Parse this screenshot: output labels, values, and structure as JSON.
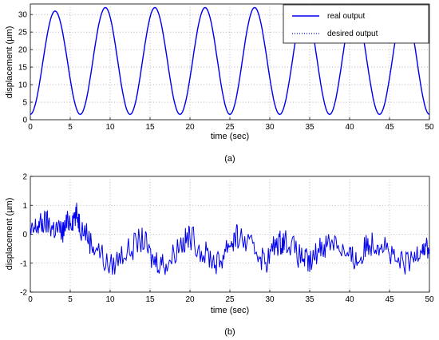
{
  "chart_data": [
    {
      "type": "line",
      "xlabel": "time (sec)",
      "ylabel": "displacement (µm)",
      "caption": "(a)",
      "xlim": [
        0,
        50
      ],
      "ylim": [
        0,
        33
      ],
      "xticks": [
        0,
        5,
        10,
        15,
        20,
        25,
        30,
        35,
        40,
        45,
        50
      ],
      "yticks": [
        0,
        5,
        10,
        15,
        20,
        25,
        30
      ],
      "grid": true,
      "legend": {
        "placement": "top-right",
        "entries": [
          "real output",
          "desired output"
        ]
      },
      "series": [
        {
          "name": "real output",
          "color": "#0000ee",
          "style": "solid",
          "x": [
            0,
            3.1,
            6.25,
            9.4,
            12.5,
            15.6,
            18.75,
            21.9,
            25.0,
            28.1,
            31.25,
            34.4,
            37.5,
            40.6,
            43.75,
            46.9,
            50
          ],
          "y": [
            1.5,
            31,
            1.5,
            32,
            1.5,
            32,
            1.5,
            32,
            1.5,
            32,
            1.5,
            32,
            1.5,
            32,
            1.5,
            32,
            1.5
          ]
        },
        {
          "name": "desired output",
          "color": "#0000ee",
          "style": "dotted",
          "x": [
            0,
            3.1,
            6.25,
            9.4,
            12.5,
            15.6,
            18.75,
            21.9,
            25.0,
            28.1,
            31.25,
            34.4,
            37.5,
            40.6,
            43.75,
            46.9,
            50
          ],
          "y": [
            1.5,
            31,
            1.5,
            32,
            1.5,
            32,
            1.5,
            32,
            1.5,
            32,
            1.5,
            32,
            1.5,
            32,
            1.5,
            32,
            1.5
          ]
        }
      ]
    },
    {
      "type": "line",
      "xlabel": "time (sec)",
      "ylabel": "displacement (µm)",
      "caption": "(b)",
      "xlim": [
        0,
        50
      ],
      "ylim": [
        -2,
        2
      ],
      "xticks": [
        0,
        5,
        10,
        15,
        20,
        25,
        30,
        35,
        40,
        45,
        50
      ],
      "yticks": [
        -2,
        -1,
        0,
        1,
        2
      ],
      "grid": true,
      "series": [
        {
          "color": "#0000ee",
          "x": [
            0,
            1,
            2,
            3,
            4,
            5,
            5.8,
            6.5,
            8,
            10,
            12,
            14,
            15.5,
            17,
            19,
            20,
            22,
            23.5,
            25,
            26,
            28,
            29.5,
            31,
            32,
            34,
            35,
            36.5,
            38,
            40,
            41,
            42.5,
            44,
            46,
            47.5,
            49,
            50
          ],
          "y": [
            0,
            0.3,
            0.4,
            0.2,
            0.1,
            0.5,
            0.65,
            0.2,
            -0.4,
            -1.1,
            -0.6,
            -0.2,
            -0.9,
            -1.0,
            -0.3,
            -0.1,
            -0.7,
            -1.0,
            -0.3,
            -0.1,
            -0.5,
            -0.9,
            -0.3,
            -0.2,
            -0.8,
            -1.0,
            -0.4,
            -0.2,
            -0.8,
            -0.9,
            -0.3,
            -0.3,
            -1.0,
            -1.0,
            -0.4,
            -0.5
          ]
        }
      ]
    }
  ]
}
